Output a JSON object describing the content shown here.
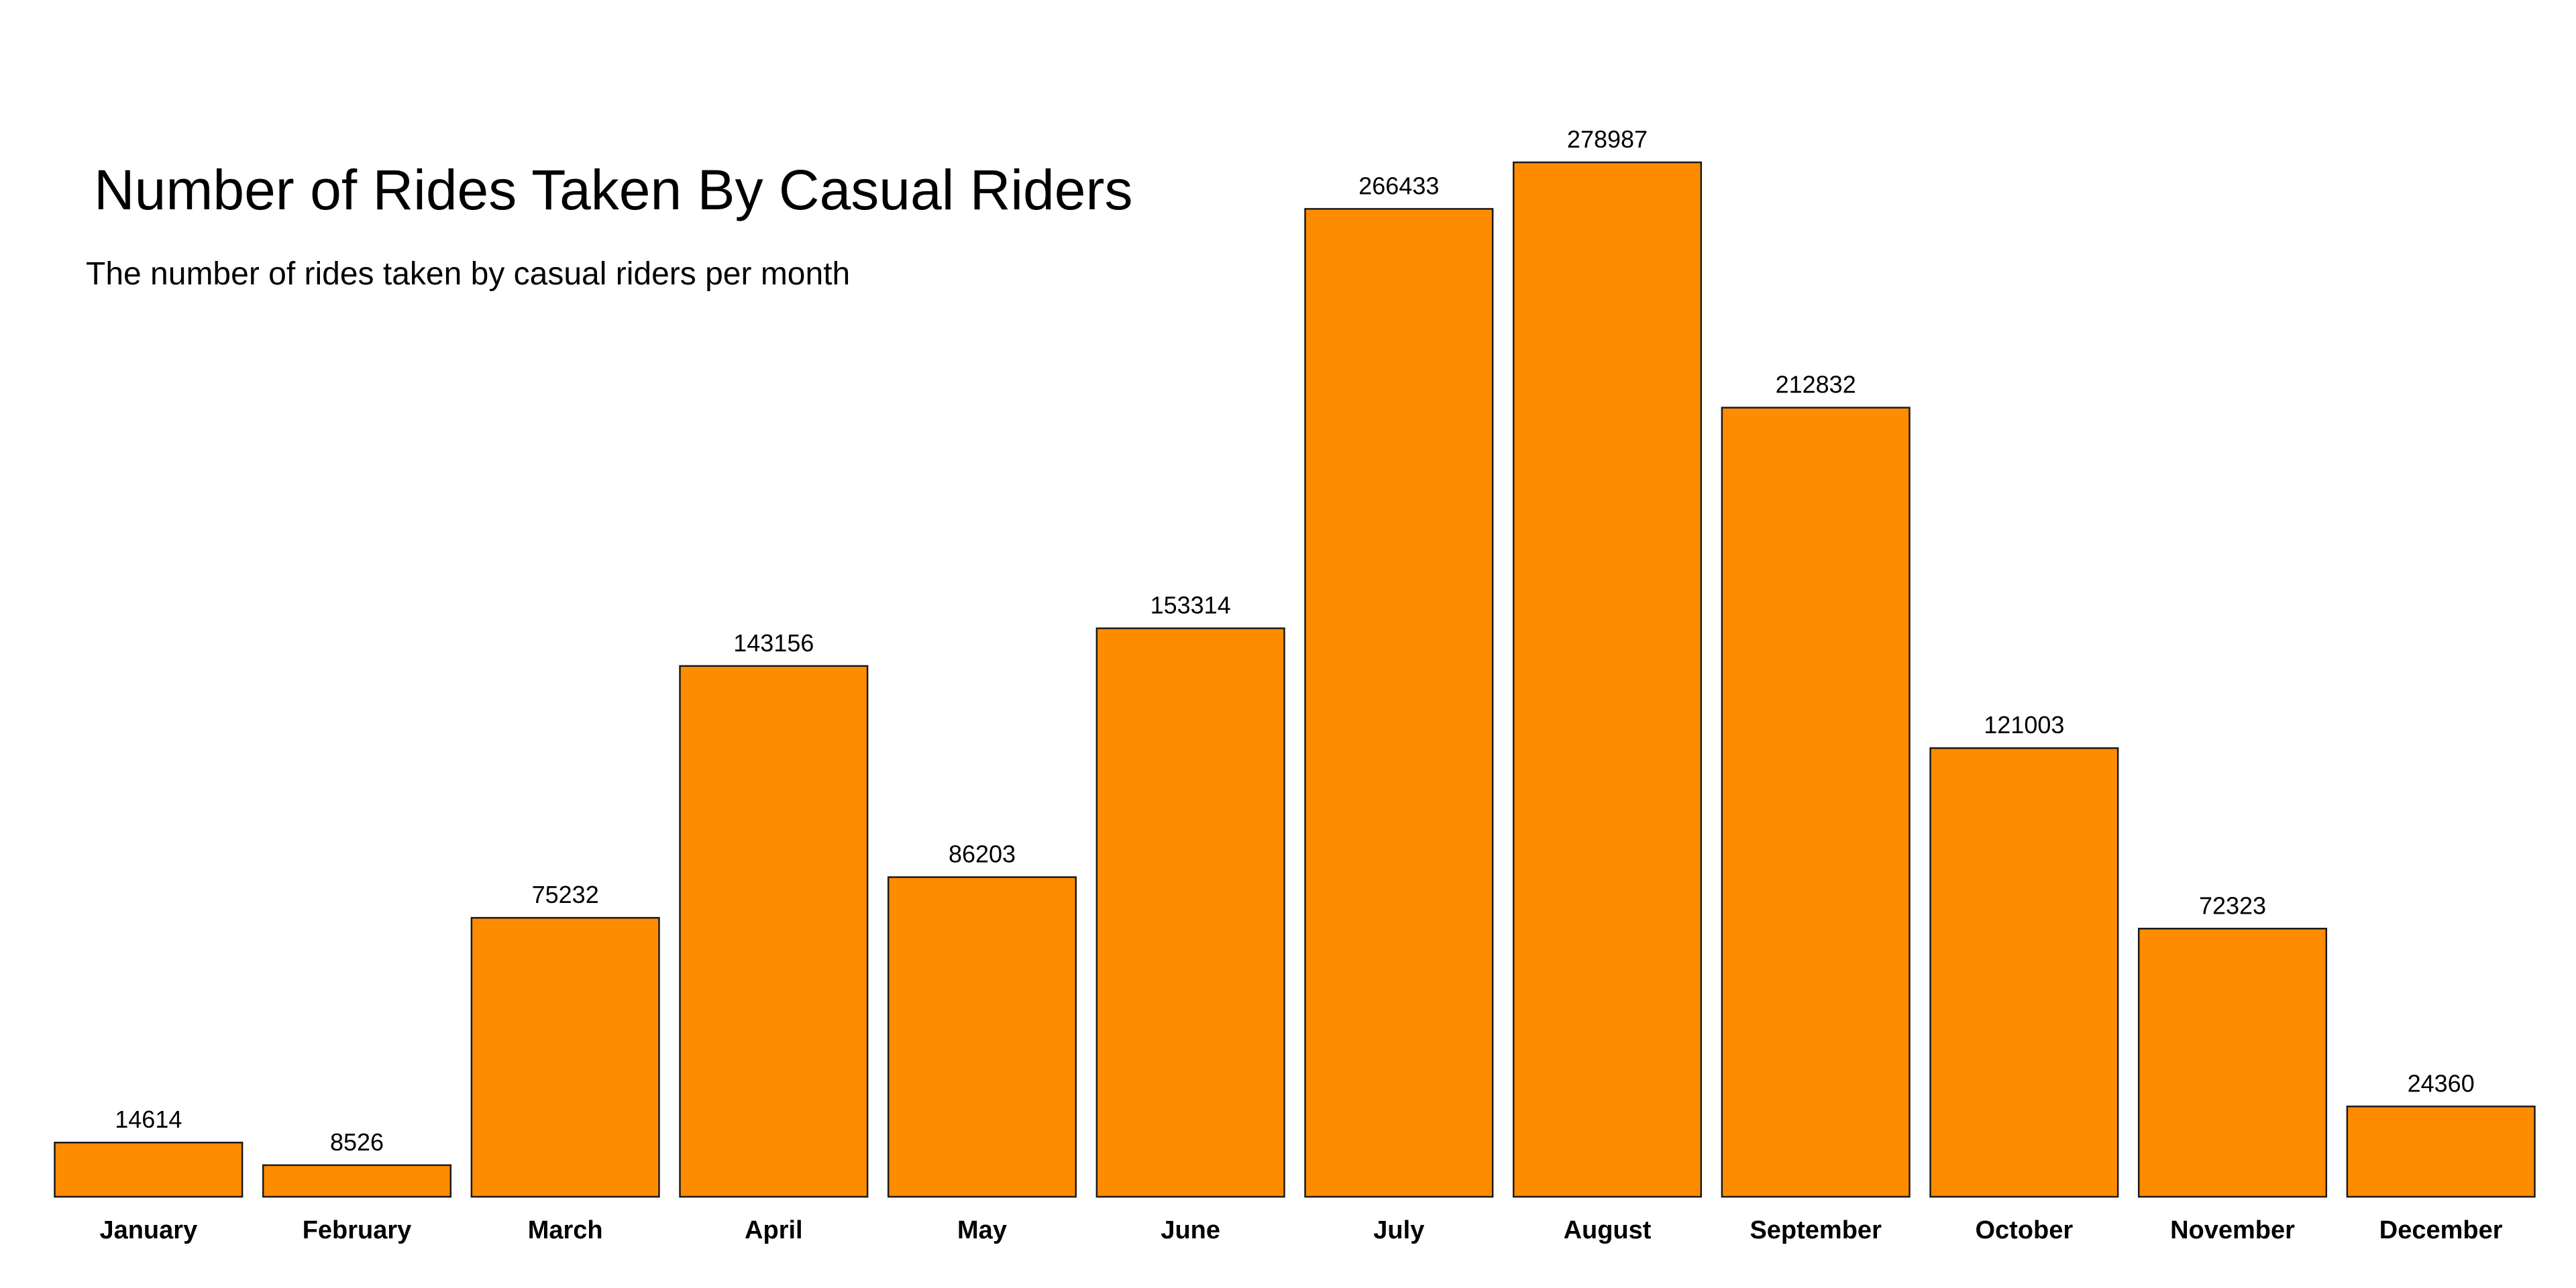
{
  "chart_data": {
    "type": "bar",
    "title": "Number of Rides Taken By Casual Riders",
    "subtitle": "The number of rides taken by casual riders per month",
    "xlabel": "",
    "ylabel": "",
    "categories": [
      "January",
      "February",
      "March",
      "April",
      "May",
      "June",
      "July",
      "August",
      "September",
      "October",
      "November",
      "December"
    ],
    "values": [
      14614,
      8526,
      75232,
      143156,
      86203,
      153314,
      266433,
      278987,
      212832,
      121003,
      72323,
      24360
    ],
    "value_labels": [
      "14614",
      "8526",
      "75232",
      "143156",
      "86203",
      "153314",
      "266433",
      "278987",
      "212832",
      "121003",
      "72323",
      "24360"
    ],
    "ylim": [
      0,
      278987
    ],
    "grid": false,
    "legend": "none",
    "bar_color": "#FF8C00",
    "bar_border_color": "#1a1a1a"
  }
}
